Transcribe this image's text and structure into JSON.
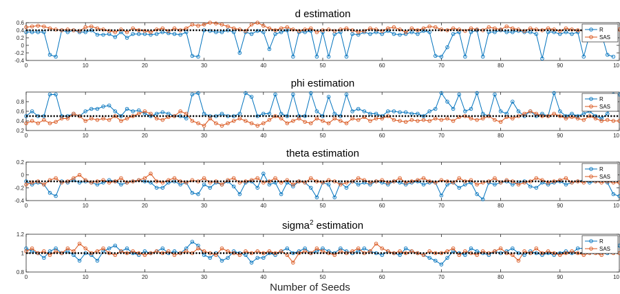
{
  "figure": {
    "xlabel": "Number of Seeds"
  },
  "chart_data": [
    {
      "type": "line",
      "title": "d estimation",
      "title_sup": "",
      "title_suffix": "",
      "ylim": [
        -0.4,
        0.6
      ],
      "yticks": [
        "-0.4",
        "-0.2",
        "0",
        "0.2",
        "0.4",
        "0.6"
      ],
      "xlim": [
        0,
        100
      ],
      "xticks": [
        "0",
        "10",
        "20",
        "30",
        "40",
        "50",
        "60",
        "70",
        "80",
        "90",
        "10"
      ],
      "reference_line": 0.4,
      "legend": [
        "R",
        "SAS"
      ],
      "legend_position": "right",
      "series": [
        {
          "name": "R",
          "values": [
            0.35,
            0.35,
            0.35,
            0.35,
            -0.25,
            -0.3,
            0.4,
            0.35,
            0.4,
            0.35,
            0.35,
            0.4,
            0.28,
            0.28,
            0.3,
            0.22,
            0.35,
            0.2,
            0.3,
            0.3,
            0.3,
            0.28,
            0.3,
            0.35,
            0.32,
            0.3,
            0.28,
            0.35,
            -0.28,
            -0.3,
            0.4,
            0.38,
            0.35,
            0.35,
            0.4,
            0.35,
            -0.2,
            0.35,
            0.3,
            0.38,
            0.35,
            -0.1,
            0.3,
            0.35,
            0.4,
            -0.3,
            0.35,
            0.35,
            0.38,
            -0.3,
            0.35,
            -0.3,
            0.3,
            0.35,
            -0.3,
            0.3,
            0.28,
            0.35,
            0.3,
            0.35,
            0.3,
            0.38,
            0.3,
            0.28,
            0.3,
            0.35,
            0.3,
            0.38,
            0.35,
            -0.28,
            -0.3,
            -0.05,
            0.3,
            0.35,
            -0.3,
            0.35,
            0.4,
            -0.3,
            0.35,
            0.35,
            0.4,
            0.35,
            0.35,
            0.38,
            0.35,
            0.35,
            0.3,
            -0.35,
            0.35,
            0.35,
            0.3,
            0.35,
            0.3,
            0.35,
            -0.3,
            0.3,
            0.35,
            0.3,
            -0.25,
            -0.3
          ]
        },
        {
          "name": "SAS",
          "values": [
            0.48,
            0.5,
            0.52,
            0.5,
            0.45,
            0.42,
            0.4,
            0.42,
            0.4,
            0.38,
            0.48,
            0.5,
            0.45,
            0.42,
            0.38,
            0.35,
            0.42,
            0.35,
            0.45,
            0.4,
            0.38,
            0.35,
            0.42,
            0.45,
            0.38,
            0.45,
            0.4,
            0.45,
            0.55,
            0.52,
            0.55,
            0.6,
            0.58,
            0.55,
            0.5,
            0.45,
            0.42,
            0.38,
            0.55,
            0.6,
            0.52,
            0.45,
            0.4,
            0.45,
            0.48,
            0.42,
            0.38,
            0.42,
            0.45,
            0.35,
            0.4,
            0.42,
            0.38,
            0.42,
            0.45,
            0.4,
            0.35,
            0.38,
            0.45,
            0.42,
            0.38,
            0.45,
            0.48,
            0.42,
            0.35,
            0.45,
            0.4,
            0.45,
            0.5,
            0.48,
            0.42,
            0.4,
            0.45,
            0.42,
            0.38,
            0.45,
            0.42,
            0.4,
            0.48,
            0.45,
            0.42,
            0.5,
            0.45,
            0.42,
            0.38,
            0.45,
            0.42,
            0.4,
            0.45,
            0.42,
            0.38,
            0.45,
            0.42,
            0.4,
            0.38,
            0.42,
            0.45,
            0.48,
            0.4,
            0.45,
            0.42
          ]
        }
      ]
    },
    {
      "type": "line",
      "title": "phi estimation",
      "title_sup": "",
      "title_suffix": "",
      "ylim": [
        0.2,
        1.0
      ],
      "yticks": [
        "0.2",
        "0.4",
        "0.6",
        "0.8"
      ],
      "xlim": [
        0,
        100
      ],
      "xticks": [
        "0",
        "10",
        "20",
        "30",
        "40",
        "50",
        "60",
        "70",
        "80",
        "90",
        "10"
      ],
      "reference_line": 0.5,
      "legend": [
        "R",
        "SAS"
      ],
      "legend_position": "right",
      "series": [
        {
          "name": "R",
          "values": [
            0.5,
            0.6,
            0.5,
            0.5,
            0.95,
            0.95,
            0.5,
            0.5,
            0.55,
            0.5,
            0.6,
            0.65,
            0.65,
            0.7,
            0.72,
            0.6,
            0.5,
            0.65,
            0.6,
            0.62,
            0.55,
            0.5,
            0.55,
            0.58,
            0.55,
            0.5,
            0.5,
            0.45,
            0.95,
            0.98,
            0.55,
            0.5,
            0.5,
            0.55,
            0.5,
            0.5,
            0.55,
            0.98,
            0.9,
            0.5,
            0.55,
            0.55,
            0.95,
            0.55,
            0.5,
            0.95,
            0.5,
            0.5,
            0.98,
            0.6,
            0.5,
            0.9,
            0.55,
            0.5,
            0.95,
            0.6,
            0.65,
            0.6,
            0.55,
            0.55,
            0.5,
            0.6,
            0.6,
            0.58,
            0.58,
            0.55,
            0.55,
            0.5,
            0.6,
            0.65,
            0.98,
            0.8,
            0.65,
            0.95,
            0.6,
            0.65,
            0.98,
            0.55,
            0.5,
            0.95,
            0.6,
            0.55,
            0.8,
            0.6,
            0.5,
            0.6,
            0.5,
            0.55,
            0.5,
            0.98,
            0.6,
            0.5,
            0.55,
            0.5,
            0.55,
            0.6,
            0.5,
            0.45,
            0.55,
            0.95,
            0.95
          ]
        },
        {
          "name": "SAS",
          "values": [
            0.35,
            0.4,
            0.35,
            0.42,
            0.35,
            0.38,
            0.45,
            0.45,
            0.55,
            0.5,
            0.4,
            0.45,
            0.42,
            0.45,
            0.42,
            0.5,
            0.4,
            0.45,
            0.5,
            0.55,
            0.6,
            0.55,
            0.45,
            0.42,
            0.48,
            0.5,
            0.6,
            0.55,
            0.4,
            0.35,
            0.3,
            0.45,
            0.35,
            0.3,
            0.35,
            0.4,
            0.45,
            0.4,
            0.35,
            0.3,
            0.35,
            0.42,
            0.5,
            0.45,
            0.35,
            0.4,
            0.45,
            0.38,
            0.35,
            0.45,
            0.4,
            0.35,
            0.45,
            0.4,
            0.35,
            0.45,
            0.42,
            0.48,
            0.4,
            0.45,
            0.45,
            0.5,
            0.42,
            0.4,
            0.38,
            0.42,
            0.4,
            0.42,
            0.4,
            0.45,
            0.42,
            0.45,
            0.4,
            0.48,
            0.5,
            0.45,
            0.42,
            0.45,
            0.5,
            0.42,
            0.38,
            0.48,
            0.45,
            0.5,
            0.55,
            0.6,
            0.55,
            0.5,
            0.5,
            0.55,
            0.5,
            0.45,
            0.48,
            0.45,
            0.42,
            0.5,
            0.45,
            0.4,
            0.42,
            0.4,
            0.4
          ]
        }
      ]
    },
    {
      "type": "line",
      "title": "theta estimation",
      "title_sup": "",
      "title_suffix": "",
      "ylim": [
        -0.4,
        0.2
      ],
      "yticks": [
        "-0.4",
        "-0.2",
        "0",
        "0.2"
      ],
      "xlim": [
        0,
        100
      ],
      "xticks": [
        "0",
        "10",
        "20",
        "30",
        "40",
        "50",
        "60",
        "70",
        "80",
        "90",
        "10"
      ],
      "reference_line": -0.1,
      "legend": [
        "R",
        "SAS"
      ],
      "legend_position": "right",
      "series": [
        {
          "name": "R",
          "values": [
            -0.1,
            -0.15,
            -0.12,
            -0.15,
            -0.28,
            -0.33,
            -0.1,
            -0.12,
            -0.08,
            -0.12,
            -0.1,
            -0.12,
            -0.15,
            -0.12,
            -0.08,
            -0.1,
            -0.15,
            -0.12,
            -0.1,
            -0.08,
            -0.1,
            -0.12,
            -0.2,
            -0.2,
            -0.12,
            -0.1,
            -0.15,
            -0.12,
            -0.28,
            -0.3,
            -0.15,
            -0.2,
            -0.12,
            -0.15,
            -0.1,
            -0.18,
            -0.3,
            -0.12,
            -0.1,
            -0.2,
            0.02,
            -0.15,
            -0.12,
            -0.3,
            -0.12,
            -0.18,
            -0.1,
            -0.12,
            -0.2,
            -0.35,
            -0.12,
            -0.15,
            -0.35,
            -0.12,
            -0.2,
            -0.1,
            -0.15,
            -0.12,
            -0.15,
            -0.1,
            -0.12,
            -0.15,
            -0.1,
            -0.12,
            -0.15,
            -0.12,
            -0.1,
            -0.15,
            -0.12,
            -0.12,
            -0.32,
            -0.15,
            -0.12,
            -0.2,
            -0.15,
            -0.12,
            -0.3,
            -0.38,
            -0.12,
            -0.15,
            -0.12,
            -0.1,
            -0.15,
            -0.12,
            -0.1,
            -0.18,
            -0.2,
            -0.12,
            -0.15,
            -0.12,
            -0.1,
            -0.15,
            -0.12,
            -0.1,
            -0.08,
            -0.12,
            -0.1,
            0.02,
            -0.12,
            -0.3,
            -0.33
          ]
        },
        {
          "name": "SAS",
          "values": [
            -0.15,
            -0.12,
            -0.1,
            -0.15,
            -0.08,
            -0.05,
            -0.12,
            -0.1,
            -0.05,
            0.0,
            -0.08,
            -0.12,
            -0.1,
            -0.08,
            -0.12,
            -0.1,
            -0.05,
            -0.12,
            -0.1,
            -0.08,
            -0.05,
            0.02,
            -0.1,
            -0.12,
            -0.08,
            -0.05,
            -0.1,
            -0.12,
            -0.08,
            -0.1,
            -0.05,
            -0.12,
            -0.1,
            -0.15,
            -0.08,
            -0.05,
            -0.12,
            -0.1,
            -0.08,
            -0.05,
            -0.12,
            -0.1,
            -0.05,
            -0.12,
            -0.08,
            -0.15,
            -0.1,
            -0.12,
            -0.05,
            -0.1,
            -0.12,
            -0.08,
            -0.1,
            -0.15,
            -0.12,
            -0.1,
            -0.05,
            -0.08,
            -0.12,
            -0.1,
            -0.08,
            -0.12,
            -0.1,
            -0.05,
            -0.12,
            -0.1,
            -0.08,
            -0.05,
            -0.1,
            -0.12,
            -0.08,
            -0.1,
            -0.12,
            -0.05,
            -0.1,
            -0.08,
            -0.15,
            -0.12,
            -0.1,
            -0.05,
            -0.12,
            -0.08,
            -0.1,
            -0.15,
            -0.12,
            -0.1,
            -0.05,
            -0.08,
            -0.12,
            -0.1,
            -0.08,
            -0.05,
            -0.12,
            -0.1,
            -0.12,
            -0.08,
            -0.1,
            -0.12,
            -0.1,
            -0.12,
            -0.12
          ]
        }
      ]
    },
    {
      "type": "line",
      "title": "sigma",
      "title_sup": "2",
      "title_suffix": " estimation",
      "ylim": [
        0.8,
        1.2
      ],
      "yticks": [
        "0.8",
        "1",
        "1.2"
      ],
      "xlim": [
        0,
        100
      ],
      "xticks": [
        "0",
        "10",
        "20",
        "30",
        "40",
        "50",
        "60",
        "70",
        "80",
        "90",
        "10"
      ],
      "reference_line": 1.0,
      "legend": [
        "R",
        "SAS"
      ],
      "legend_position": "right",
      "series": [
        {
          "name": "R",
          "values": [
            1.05,
            1.02,
            1.0,
            0.95,
            1.02,
            1.05,
            1.0,
            1.02,
            0.98,
            0.92,
            1.0,
            0.98,
            0.92,
            1.02,
            1.05,
            1.08,
            1.02,
            1.05,
            1.0,
            0.98,
            1.02,
            1.0,
            1.02,
            1.05,
            1.0,
            1.02,
            1.0,
            1.05,
            1.12,
            1.08,
            0.98,
            0.95,
            1.0,
            0.92,
            0.95,
            1.02,
            1.0,
            0.98,
            0.9,
            0.95,
            0.95,
            1.0,
            0.98,
            1.02,
            1.05,
            1.0,
            1.02,
            1.05,
            1.0,
            1.02,
            1.05,
            1.02,
            1.0,
            1.05,
            1.02,
            1.0,
            1.02,
            1.05,
            1.02,
            1.0,
            0.98,
            1.02,
            1.0,
            0.98,
            1.05,
            1.02,
            1.0,
            0.98,
            0.95,
            0.92,
            0.88,
            0.95,
            1.02,
            1.0,
            0.98,
            1.05,
            1.02,
            1.0,
            0.98,
            1.02,
            1.0,
            1.02,
            1.05,
            1.0,
            0.98,
            1.02,
            1.0,
            0.98,
            1.0,
            0.98,
            1.0,
            1.02,
            1.0,
            1.05,
            1.05,
            1.02,
            1.05,
            1.02,
            1.0,
            1.05,
            1.08
          ]
        },
        {
          "name": "SAS",
          "values": [
            1.02,
            1.05,
            1.0,
            1.02,
            0.98,
            1.02,
            1.0,
            1.05,
            1.02,
            1.1,
            1.05,
            1.0,
            1.02,
            1.05,
            1.0,
            0.98,
            1.02,
            1.0,
            1.02,
            1.0,
            0.98,
            1.0,
            1.02,
            1.0,
            1.02,
            0.98,
            1.0,
            1.02,
            1.0,
            1.05,
            1.02,
            1.0,
            0.98,
            1.05,
            1.02,
            1.0,
            0.98,
            1.02,
            1.0,
            1.02,
            1.0,
            1.02,
            1.0,
            1.02,
            0.98,
            0.9,
            1.0,
            1.02,
            1.0,
            1.05,
            1.02,
            1.0,
            0.98,
            1.02,
            1.0,
            1.02,
            1.05,
            1.0,
            1.02,
            1.1,
            1.05,
            1.02,
            1.0,
            1.02,
            1.0,
            1.02,
            1.0,
            0.98,
            1.02,
            1.0,
            1.0,
            1.02,
            1.05,
            0.98,
            1.02,
            1.0,
            0.98,
            1.02,
            1.0,
            1.02,
            1.05,
            1.0,
            0.98,
            0.92,
            1.02,
            1.0,
            1.05,
            1.0,
            1.02,
            1.0,
            0.98,
            1.0,
            1.02,
            1.0,
            0.98,
            1.0,
            1.0,
            0.98,
            1.02,
            1.0,
            1.0
          ]
        }
      ]
    }
  ],
  "colors": {
    "R": "#0072BD",
    "SAS": "#D95319",
    "reference": "#000000",
    "axis": "#262626"
  }
}
